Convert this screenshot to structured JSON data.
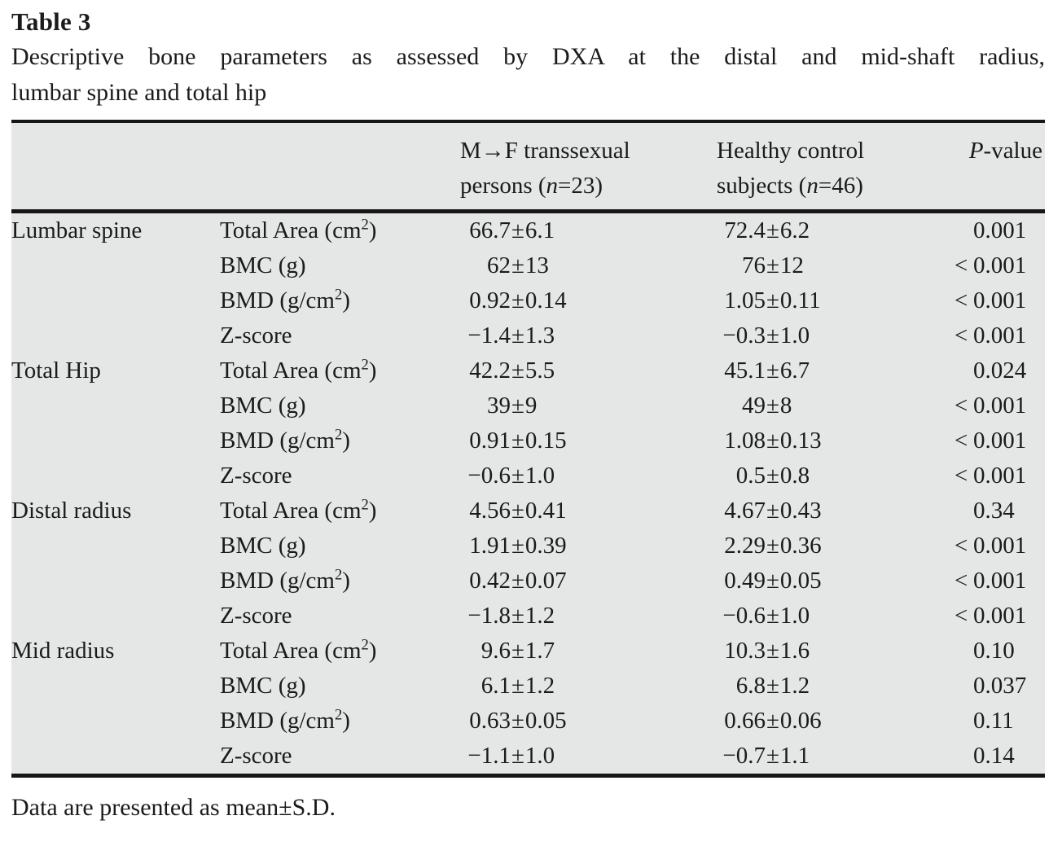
{
  "title": "Table 3",
  "caption_line1": "Descriptive bone parameters as assessed by DXA at the distal and mid-shaft radius,",
  "caption_line2": "lumbar spine and total hip",
  "columns": {
    "group1_line1": "M→F transsexual",
    "group1_line2": "persons (n=23)",
    "group2_line1": "Healthy control",
    "group2_line2": "subjects (n=46)",
    "pvalue": "P-value"
  },
  "sections": [
    {
      "region": "Lumbar spine",
      "rows": [
        {
          "param": "Total Area (cm²)",
          "mf": "66.7±6.1",
          "hc": "72.4±6.2",
          "p": "0.001"
        },
        {
          "param": "BMC (g)",
          "mf": "62±13",
          "hc": "76±12",
          "p": "<0.001"
        },
        {
          "param": "BMD (g/cm²)",
          "mf": "0.92±0.14",
          "hc": "1.05±0.11",
          "p": "<0.001"
        },
        {
          "param": "Z-score",
          "mf": "−1.4±1.3",
          "hc": "−0.3±1.0",
          "p": "<0.001"
        }
      ]
    },
    {
      "region": "Total Hip",
      "rows": [
        {
          "param": "Total Area (cm²)",
          "mf": "42.2±5.5",
          "hc": "45.1±6.7",
          "p": "0.024"
        },
        {
          "param": "BMC (g)",
          "mf": "39±9",
          "hc": "49±8",
          "p": "<0.001"
        },
        {
          "param": "BMD (g/cm²)",
          "mf": "0.91±0.15",
          "hc": "1.08±0.13",
          "p": "<0.001"
        },
        {
          "param": "Z-score",
          "mf": "−0.6±1.0",
          "hc": "0.5±0.8",
          "p": "<0.001"
        }
      ]
    },
    {
      "region": "Distal radius",
      "rows": [
        {
          "param": "Total Area (cm²)",
          "mf": "4.56±0.41",
          "hc": "4.67±0.43",
          "p": "0.34"
        },
        {
          "param": "BMC (g)",
          "mf": "1.91±0.39",
          "hc": "2.29±0.36",
          "p": "<0.001"
        },
        {
          "param": "BMD (g/cm²)",
          "mf": "0.42±0.07",
          "hc": "0.49±0.05",
          "p": "<0.001"
        },
        {
          "param": "Z-score",
          "mf": "−1.8±1.2",
          "hc": "−0.6±1.0",
          "p": "<0.001"
        }
      ]
    },
    {
      "region": "Mid radius",
      "rows": [
        {
          "param": "Total Area (cm²)",
          "mf": "9.6±1.7",
          "hc": "10.3±1.6",
          "p": "0.10"
        },
        {
          "param": "BMC (g)",
          "mf": "6.1±1.2",
          "hc": "6.8±1.2",
          "p": "0.037"
        },
        {
          "param": "BMD (g/cm²)",
          "mf": "0.63±0.05",
          "hc": "0.66±0.06",
          "p": "0.11"
        },
        {
          "param": "Z-score",
          "mf": "−1.1±1.0",
          "hc": "−0.7±1.1",
          "p": "0.14"
        }
      ]
    }
  ],
  "footnote": "Data are presented as mean±S.D.",
  "colors": {
    "table_background": "#e5e6e6",
    "rule": "#161616",
    "text": "#1b1b1b"
  }
}
